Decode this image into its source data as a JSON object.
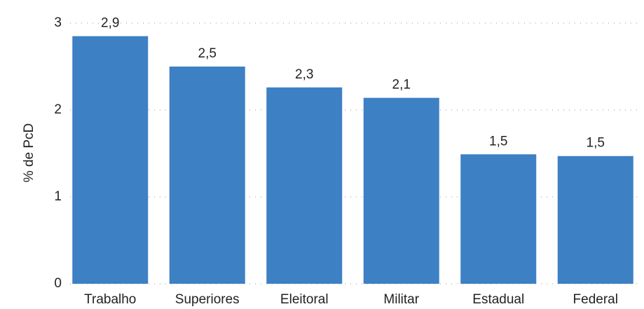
{
  "chart_data": {
    "type": "bar",
    "y_label": "% de PcD",
    "categories": [
      "Trabalho",
      "Superiores",
      "Eleitoral",
      "Militar",
      "Estadual",
      "Federal"
    ],
    "values": [
      2.85,
      2.5,
      2.26,
      2.14,
      1.49,
      1.47
    ],
    "value_labels": [
      "2,9",
      "2,5",
      "2,3",
      "2,1",
      "1,5",
      "1,5"
    ],
    "color": "#3d80c4",
    "ylim": [
      0,
      3
    ],
    "yticks": [
      0,
      1,
      2,
      3
    ],
    "grid": true
  }
}
